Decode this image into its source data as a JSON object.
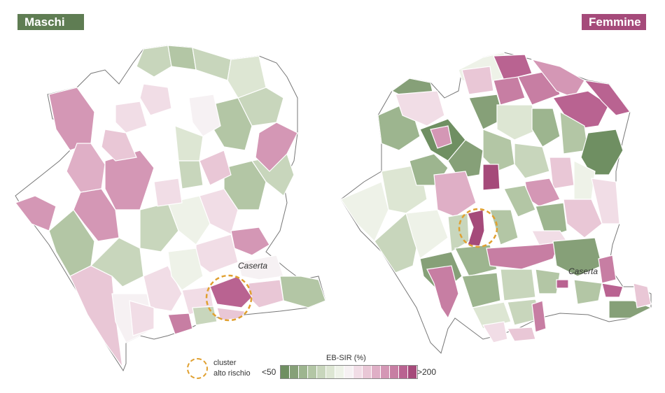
{
  "labels": {
    "male": "Maschi",
    "female": "Femmine"
  },
  "colors": {
    "male": "#5f7d53",
    "female": "#a54a7a",
    "cluster": "#e0a030"
  },
  "city": "Caserta",
  "legend": {
    "title": "EB-SIR (%)",
    "min": "<50",
    "max": ">200",
    "cluster_line1": "cluster",
    "cluster_line2": "alto rischio",
    "scale": [
      "#6f8f62",
      "#86a078",
      "#9db58f",
      "#b3c6a5",
      "#c8d6bc",
      "#dde6d3",
      "#eef2e8",
      "#f6f1f3",
      "#f1dde6",
      "#e9c7d6",
      "#dfafc6",
      "#d497b5",
      "#c77ea3",
      "#b96391",
      "#a54a7a"
    ]
  }
}
